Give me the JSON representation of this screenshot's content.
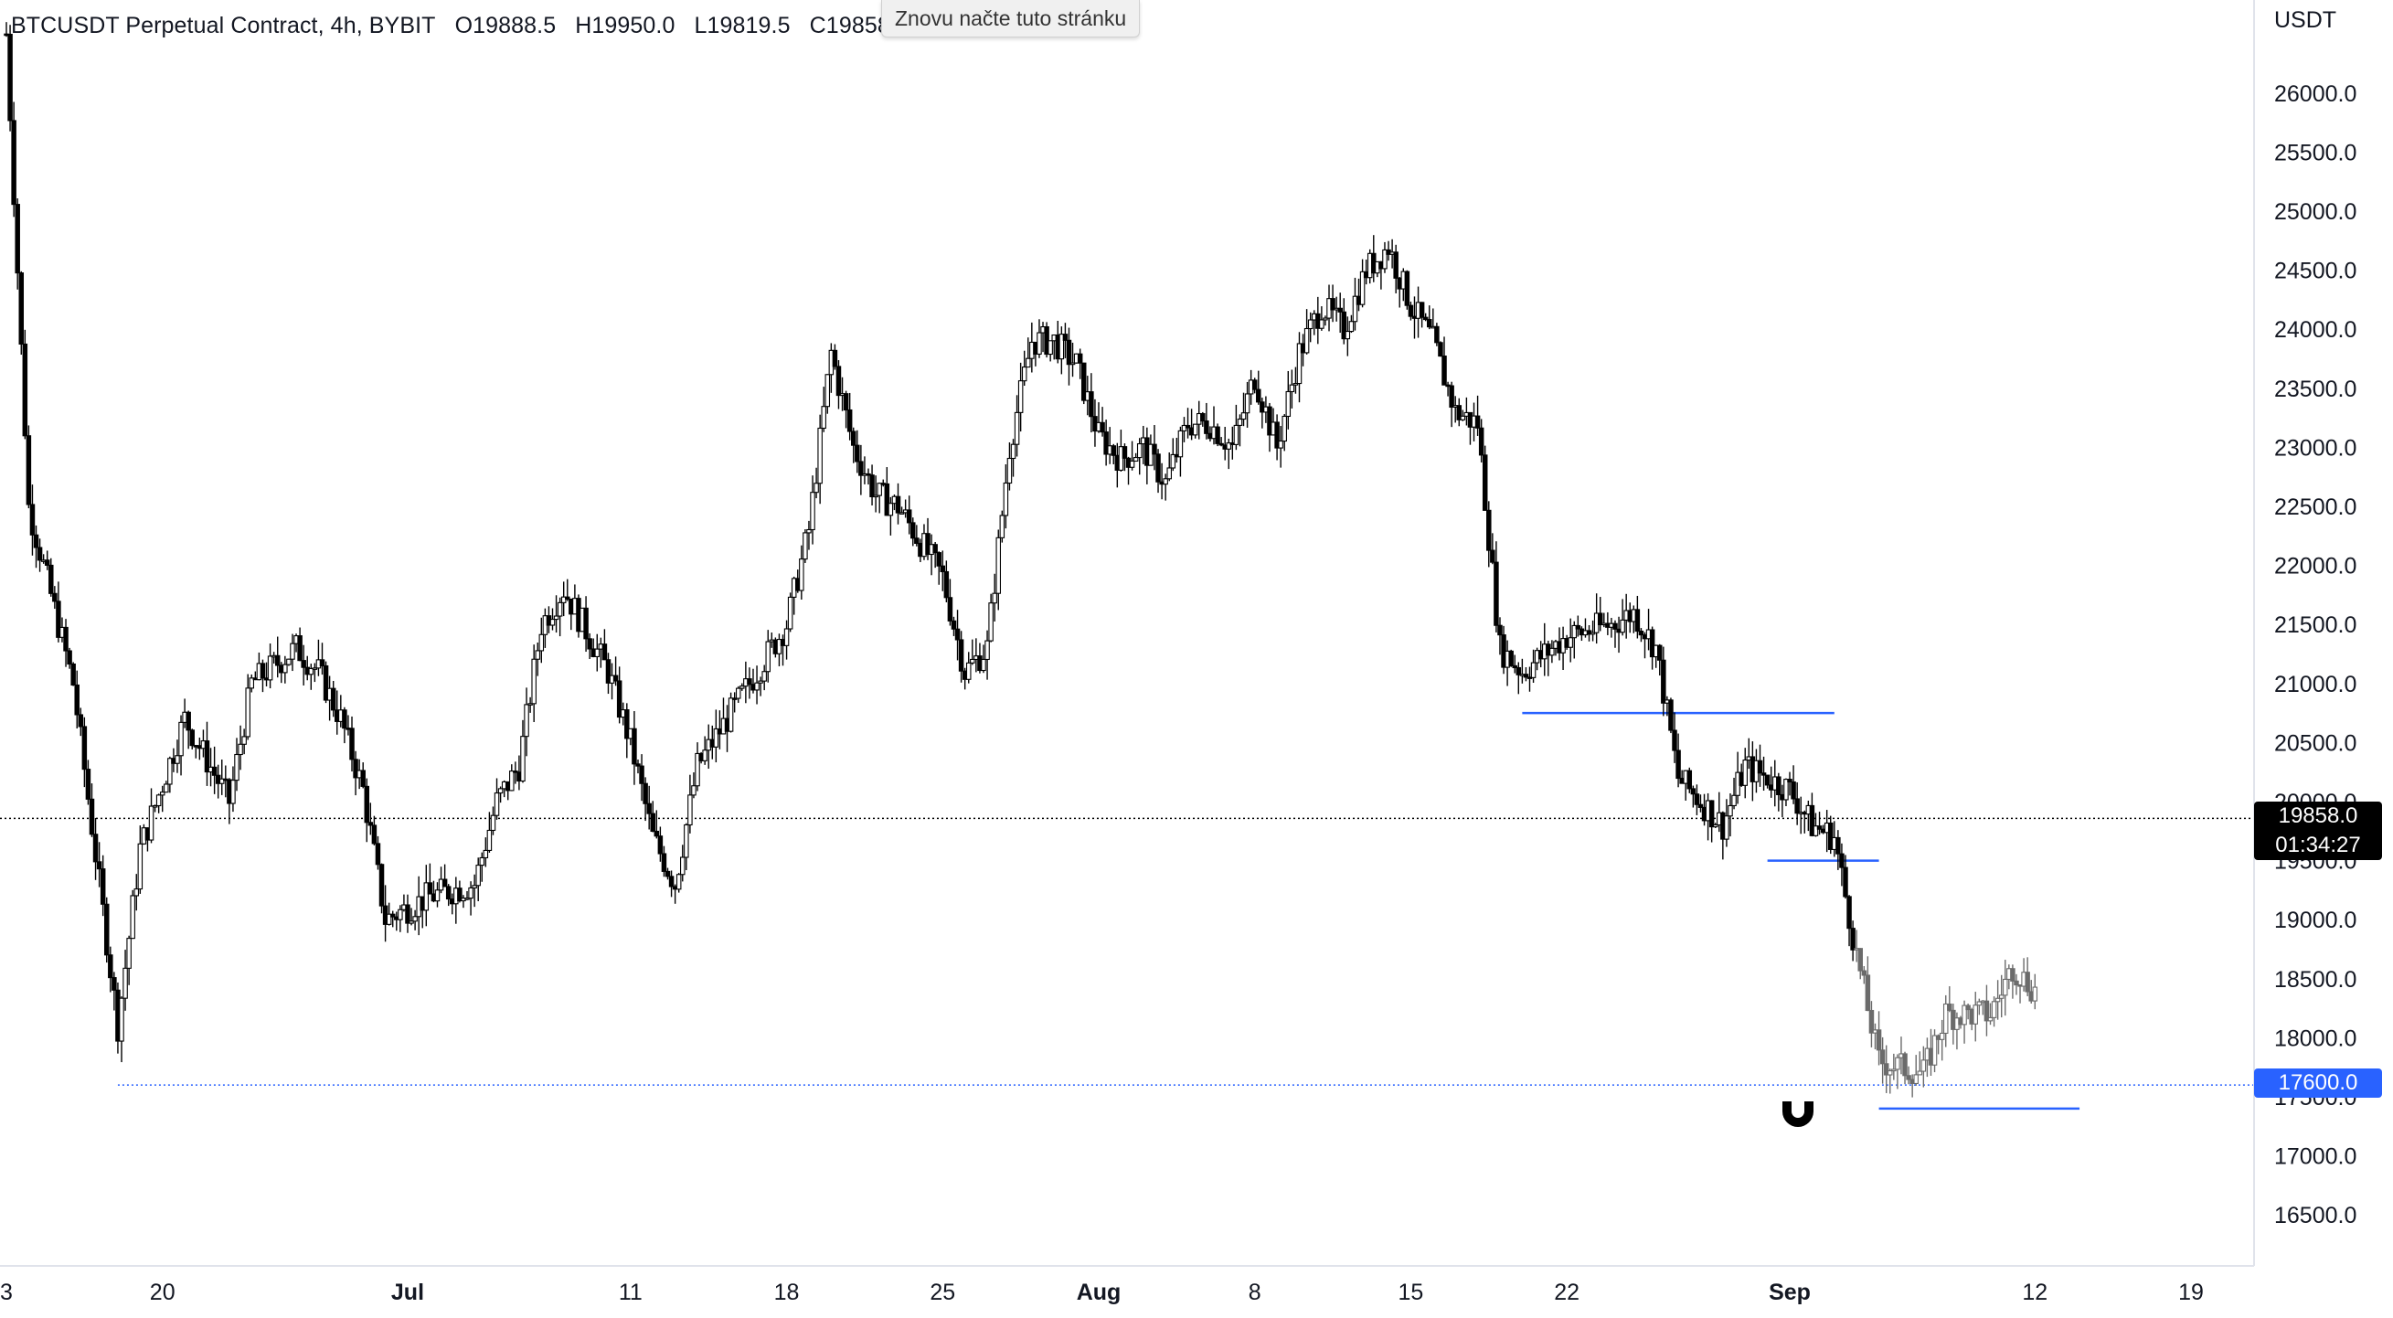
{
  "legend": {
    "symbol": "BTCUSDT Perpetual Contract, 4h, BYBIT",
    "open": "O19888.5",
    "high": "H19950.0",
    "low": "L19819.5",
    "close": "C19858.0"
  },
  "tooltip": {
    "text": "Znovu načte tuto stránku"
  },
  "price_axis": {
    "currency": "USDT",
    "current_price": "19858.0",
    "countdown": "01:34:27",
    "level_label": "17600.0"
  },
  "magnet_icon": "magnet-icon",
  "colors": {
    "candles": "#000000",
    "candles_recent": "#6b6b6b",
    "levels": "#2962ff",
    "current_price_badge": "#000000",
    "level_badge": "#2962ff"
  },
  "chart_data": {
    "type": "candlestick",
    "symbol": "BTCUSDT Perpetual Contract",
    "interval": "4h",
    "exchange": "BYBIT",
    "ylim": [
      16000,
      26500
    ],
    "y_ticks": [
      16500,
      17000,
      17500,
      18000,
      18500,
      19000,
      19500,
      20000,
      20500,
      21000,
      21500,
      22000,
      22500,
      23000,
      23500,
      24000,
      24500,
      25000,
      25500,
      26000
    ],
    "x_ticks": [
      {
        "label": "3",
        "date": "2022-06-13"
      },
      {
        "label": "20",
        "date": "2022-06-20"
      },
      {
        "label": "Jul",
        "date": "2022-07-01",
        "bold": true
      },
      {
        "label": "11",
        "date": "2022-07-11"
      },
      {
        "label": "18",
        "date": "2022-07-18"
      },
      {
        "label": "25",
        "date": "2022-07-25"
      },
      {
        "label": "Aug",
        "date": "2022-08-01",
        "bold": true
      },
      {
        "label": "8",
        "date": "2022-08-08"
      },
      {
        "label": "15",
        "date": "2022-08-15"
      },
      {
        "label": "22",
        "date": "2022-08-22"
      },
      {
        "label": "Sep",
        "date": "2022-09-01",
        "bold": true
      },
      {
        "label": "12",
        "date": "2022-09-12"
      },
      {
        "label": "19",
        "date": "2022-09-19"
      }
    ],
    "price_path": [
      {
        "date": "2022-06-13",
        "price": 26500
      },
      {
        "date": "2022-06-14",
        "price": 22500
      },
      {
        "date": "2022-06-16",
        "price": 21000
      },
      {
        "date": "2022-06-18",
        "price": 18100
      },
      {
        "date": "2022-06-19",
        "price": 19600
      },
      {
        "date": "2022-06-21",
        "price": 20700
      },
      {
        "date": "2022-06-23",
        "price": 20000
      },
      {
        "date": "2022-06-24",
        "price": 21000
      },
      {
        "date": "2022-06-26",
        "price": 21300
      },
      {
        "date": "2022-06-27",
        "price": 21100
      },
      {
        "date": "2022-06-28",
        "price": 20700
      },
      {
        "date": "2022-06-29",
        "price": 20100
      },
      {
        "date": "2022-06-30",
        "price": 19000
      },
      {
        "date": "2022-07-02",
        "price": 19200
      },
      {
        "date": "2022-07-04",
        "price": 19300
      },
      {
        "date": "2022-07-05",
        "price": 20000
      },
      {
        "date": "2022-07-06",
        "price": 20300
      },
      {
        "date": "2022-07-07",
        "price": 21500
      },
      {
        "date": "2022-07-08",
        "price": 21800
      },
      {
        "date": "2022-07-10",
        "price": 21100
      },
      {
        "date": "2022-07-11",
        "price": 20500
      },
      {
        "date": "2022-07-12",
        "price": 19700
      },
      {
        "date": "2022-07-13",
        "price": 19300
      },
      {
        "date": "2022-07-14",
        "price": 20300
      },
      {
        "date": "2022-07-16",
        "price": 20900
      },
      {
        "date": "2022-07-18",
        "price": 21500
      },
      {
        "date": "2022-07-19",
        "price": 22300
      },
      {
        "date": "2022-07-20",
        "price": 23800
      },
      {
        "date": "2022-07-21",
        "price": 23000
      },
      {
        "date": "2022-07-22",
        "price": 22600
      },
      {
        "date": "2022-07-23",
        "price": 22500
      },
      {
        "date": "2022-07-24",
        "price": 22200
      },
      {
        "date": "2022-07-25",
        "price": 21900
      },
      {
        "date": "2022-07-26",
        "price": 21100
      },
      {
        "date": "2022-07-27",
        "price": 21300
      },
      {
        "date": "2022-07-28",
        "price": 23000
      },
      {
        "date": "2022-07-29",
        "price": 23900
      },
      {
        "date": "2022-07-30",
        "price": 23900
      },
      {
        "date": "2022-07-31",
        "price": 23700
      },
      {
        "date": "2022-08-01",
        "price": 23100
      },
      {
        "date": "2022-08-02",
        "price": 22900
      },
      {
        "date": "2022-08-03",
        "price": 23000
      },
      {
        "date": "2022-08-04",
        "price": 22700
      },
      {
        "date": "2022-08-05",
        "price": 23200
      },
      {
        "date": "2022-08-06",
        "price": 23200
      },
      {
        "date": "2022-08-07",
        "price": 23000
      },
      {
        "date": "2022-08-08",
        "price": 23600
      },
      {
        "date": "2022-08-09",
        "price": 23000
      },
      {
        "date": "2022-08-10",
        "price": 23800
      },
      {
        "date": "2022-08-11",
        "price": 24200
      },
      {
        "date": "2022-08-12",
        "price": 24000
      },
      {
        "date": "2022-08-13",
        "price": 24500
      },
      {
        "date": "2022-08-14",
        "price": 24700
      },
      {
        "date": "2022-08-15",
        "price": 24200
      },
      {
        "date": "2022-08-16",
        "price": 23900
      },
      {
        "date": "2022-08-17",
        "price": 23300
      },
      {
        "date": "2022-08-18",
        "price": 23200
      },
      {
        "date": "2022-08-19",
        "price": 21300
      },
      {
        "date": "2022-08-20",
        "price": 21100
      },
      {
        "date": "2022-08-22",
        "price": 21400
      },
      {
        "date": "2022-08-24",
        "price": 21500
      },
      {
        "date": "2022-08-25",
        "price": 21600
      },
      {
        "date": "2022-08-26",
        "price": 21300
      },
      {
        "date": "2022-08-27",
        "price": 20200
      },
      {
        "date": "2022-08-29",
        "price": 19800
      },
      {
        "date": "2022-08-30",
        "price": 20300
      },
      {
        "date": "2022-09-01",
        "price": 20100
      },
      {
        "date": "2022-09-02",
        "price": 19800
      },
      {
        "date": "2022-09-03",
        "price": 19700
      },
      {
        "date": "2022-09-04",
        "price": 18700
      },
      {
        "date": "2022-09-05",
        "price": 17800
      },
      {
        "date": "2022-09-07",
        "price": 17700
      },
      {
        "date": "2022-09-08",
        "price": 18200
      },
      {
        "date": "2022-09-10",
        "price": 18200
      },
      {
        "date": "2022-09-11",
        "price": 18600
      },
      {
        "date": "2022-09-12",
        "price": 18400
      }
    ],
    "levels": [
      {
        "price": 20750,
        "from": "2022-08-20",
        "to": "2022-09-03",
        "style": "solid"
      },
      {
        "price": 19500,
        "from": "2022-08-31",
        "to": "2022-09-05",
        "style": "solid"
      },
      {
        "price": 17400,
        "from": "2022-09-05",
        "to": "2022-09-14",
        "style": "solid"
      },
      {
        "price": 17600,
        "from": "2022-06-18",
        "to": "2022-09-25",
        "style": "dotted"
      },
      {
        "price": 19858,
        "from": "2022-06-13",
        "to": "2022-09-25",
        "style": "dotted-black"
      }
    ],
    "last_price": 19858.0,
    "grid": false
  }
}
